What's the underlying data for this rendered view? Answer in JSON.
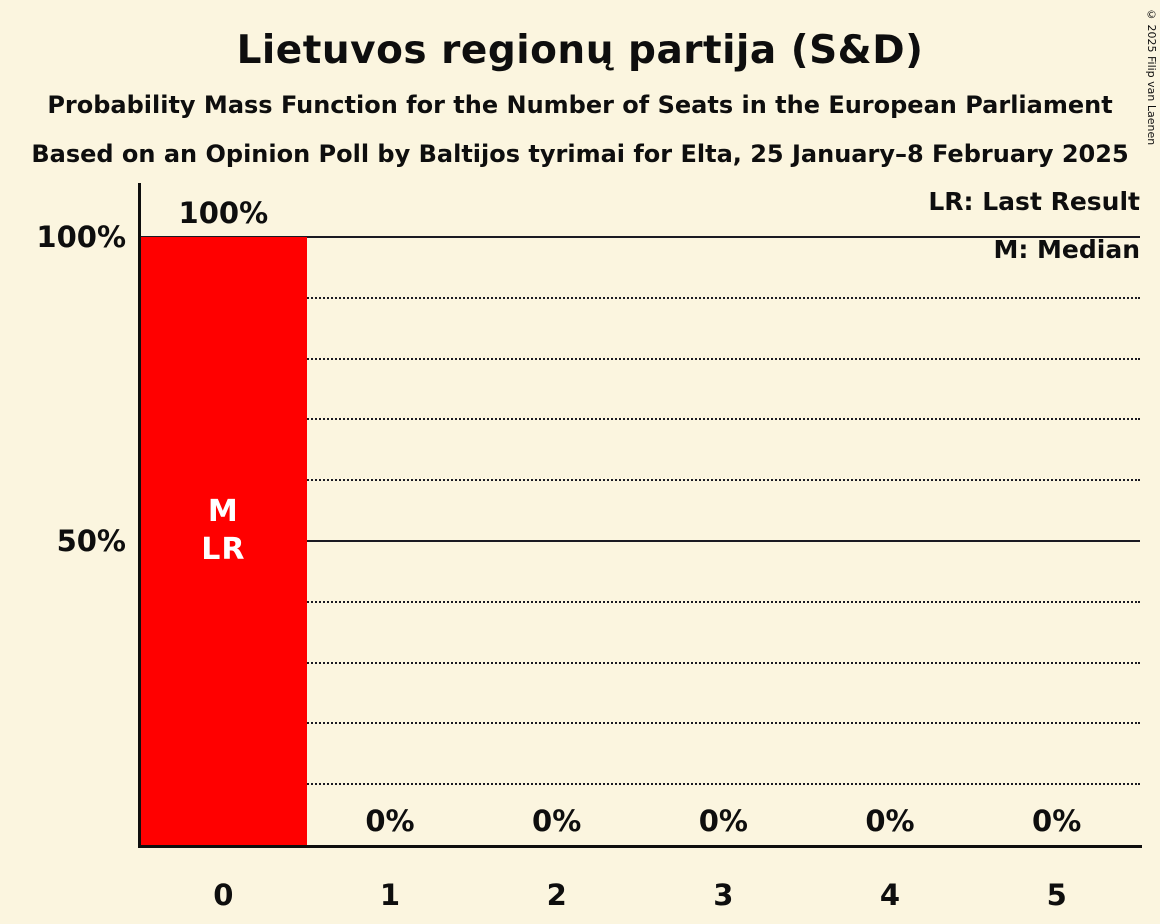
{
  "title": "Lietuvos regionų partija (S&D)",
  "subtitle1": "Probability Mass Function for the Number of Seats in the European Parliament",
  "subtitle2": "Based on an Opinion Poll by Baltijos tyrimai for Elta, 25 January–8 February 2025",
  "copyright": "© 2025 Filip van Laenen",
  "legend": {
    "last_result": "LR: Last Result",
    "median": "M: Median"
  },
  "chart_data": {
    "type": "bar",
    "title": "Lietuvos regionų partija (S&D)",
    "categories": [
      "0",
      "1",
      "2",
      "3",
      "4",
      "5"
    ],
    "values": [
      100,
      0,
      0,
      0,
      0,
      0
    ],
    "bar_labels": [
      "100%",
      "0%",
      "0%",
      "0%",
      "0%",
      "0%"
    ],
    "ylim": [
      0,
      100
    ],
    "yticks": [
      {
        "value": 100,
        "label": "100%"
      },
      {
        "value": 50,
        "label": "50%"
      }
    ],
    "gridlines": {
      "solid": [
        100,
        50
      ],
      "dotted": [
        90,
        80,
        70,
        60,
        40,
        30,
        20,
        10
      ]
    },
    "bar_color": "#FF0000",
    "background_color": "#FBF5DF",
    "text_color": "#0E0E0E",
    "bar_annotations": [
      {
        "category_index": 0,
        "lines": [
          "M",
          "LR"
        ]
      }
    ],
    "legend_position": "top-right",
    "grid": true
  }
}
